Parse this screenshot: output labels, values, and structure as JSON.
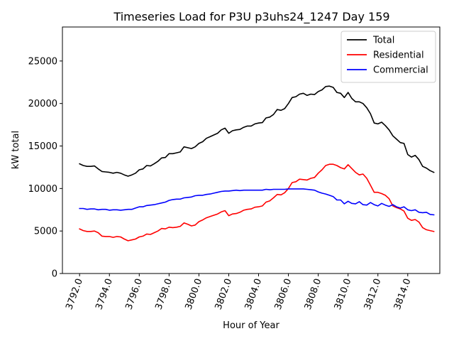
{
  "chart_data": {
    "type": "line",
    "title": "Timeseries Load for P3U p3uhs24_1247  Day 159",
    "xlabel": "Hour of Year",
    "ylabel": "kW total",
    "xlim": [
      3790.85,
      3816.15
    ],
    "ylim": [
      0,
      29000
    ],
    "x_ticks": [
      3792,
      3794,
      3796,
      3798,
      3800,
      3802,
      3804,
      3806,
      3808,
      3810,
      3812,
      3814
    ],
    "x_tick_labels": [
      "3792.0",
      "3794.0",
      "3796.0",
      "3798.0",
      "3800.0",
      "3802.0",
      "3804.0",
      "3806.0",
      "3808.0",
      "3810.0",
      "3812.0",
      "3814.0"
    ],
    "y_ticks": [
      0,
      5000,
      10000,
      15000,
      20000,
      25000
    ],
    "y_tick_labels": [
      "0",
      "5000",
      "10000",
      "15000",
      "20000",
      "25000"
    ],
    "legend_position": "top-right",
    "x": [
      3792.0,
      3792.25,
      3792.5,
      3792.75,
      3793.0,
      3793.25,
      3793.5,
      3793.75,
      3794.0,
      3794.25,
      3794.5,
      3794.75,
      3795.0,
      3795.25,
      3795.5,
      3795.75,
      3796.0,
      3796.25,
      3796.5,
      3796.75,
      3797.0,
      3797.25,
      3797.5,
      3797.75,
      3798.0,
      3798.25,
      3798.5,
      3798.75,
      3799.0,
      3799.25,
      3799.5,
      3799.75,
      3800.0,
      3800.25,
      3800.5,
      3800.75,
      3801.0,
      3801.25,
      3801.5,
      3801.75,
      3802.0,
      3802.25,
      3802.5,
      3802.75,
      3803.0,
      3803.25,
      3803.5,
      3803.75,
      3804.0,
      3804.25,
      3804.5,
      3804.75,
      3805.0,
      3805.25,
      3805.5,
      3805.75,
      3806.0,
      3806.25,
      3806.5,
      3806.75,
      3807.0,
      3807.25,
      3807.5,
      3807.75,
      3808.0,
      3808.25,
      3808.5,
      3808.75,
      3809.0,
      3809.25,
      3809.5,
      3809.75,
      3810.0,
      3810.25,
      3810.5,
      3810.75,
      3811.0,
      3811.25,
      3811.5,
      3811.75,
      3812.0,
      3812.25,
      3812.5,
      3812.75,
      3813.0,
      3813.25,
      3813.5,
      3813.75,
      3814.0,
      3814.25,
      3814.5,
      3814.75,
      3815.0,
      3815.25,
      3815.5,
      3815.75
    ],
    "series": [
      {
        "name": "Total",
        "color": "#000000",
        "values": [
          12900,
          12700,
          12600,
          12600,
          12650,
          12300,
          12000,
          11950,
          11900,
          11800,
          11900,
          11800,
          11600,
          11450,
          11600,
          11800,
          12200,
          12300,
          12700,
          12650,
          12900,
          13200,
          13600,
          13650,
          14100,
          14100,
          14200,
          14300,
          14900,
          14800,
          14700,
          14900,
          15300,
          15500,
          15900,
          16100,
          16300,
          16500,
          16900,
          17100,
          16500,
          16800,
          16900,
          16950,
          17200,
          17350,
          17350,
          17600,
          17700,
          17750,
          18300,
          18400,
          18700,
          19300,
          19200,
          19400,
          20000,
          20700,
          20800,
          21100,
          21200,
          20950,
          21100,
          21050,
          21400,
          21600,
          22000,
          22050,
          21900,
          21300,
          21200,
          20700,
          21300,
          20600,
          20200,
          20200,
          20000,
          19500,
          18800,
          17700,
          17600,
          17800,
          17400,
          16900,
          16200,
          15800,
          15400,
          15300,
          14000,
          13700,
          13900,
          13400,
          12600,
          12400,
          12100,
          11900
        ]
      },
      {
        "name": "Residential",
        "color": "#ff0000",
        "values": [
          5250,
          5050,
          4950,
          4950,
          5000,
          4800,
          4400,
          4350,
          4350,
          4250,
          4350,
          4300,
          4050,
          3850,
          3950,
          4050,
          4300,
          4400,
          4650,
          4600,
          4800,
          5000,
          5300,
          5250,
          5450,
          5400,
          5450,
          5550,
          5950,
          5800,
          5600,
          5700,
          6100,
          6300,
          6550,
          6700,
          6850,
          7000,
          7250,
          7400,
          6800,
          7000,
          7050,
          7200,
          7450,
          7550,
          7600,
          7800,
          7850,
          7950,
          8400,
          8550,
          8900,
          9300,
          9250,
          9500,
          10000,
          10700,
          10800,
          11100,
          11050,
          11000,
          11200,
          11300,
          11800,
          12200,
          12700,
          12850,
          12850,
          12700,
          12450,
          12300,
          12800,
          12350,
          11900,
          11600,
          11700,
          11200,
          10400,
          9550,
          9550,
          9400,
          9200,
          8800,
          7950,
          7750,
          7600,
          7350,
          6500,
          6250,
          6350,
          6050,
          5400,
          5150,
          5050,
          4950
        ]
      },
      {
        "name": "Commercial",
        "color": "#0000ff",
        "values": [
          7650,
          7650,
          7550,
          7600,
          7600,
          7500,
          7550,
          7550,
          7450,
          7500,
          7500,
          7450,
          7500,
          7550,
          7550,
          7700,
          7850,
          7850,
          8000,
          8050,
          8100,
          8200,
          8300,
          8400,
          8600,
          8700,
          8750,
          8750,
          8900,
          8950,
          9000,
          9150,
          9200,
          9200,
          9300,
          9350,
          9450,
          9550,
          9650,
          9700,
          9700,
          9750,
          9800,
          9750,
          9800,
          9800,
          9800,
          9800,
          9800,
          9800,
          9900,
          9850,
          9900,
          9900,
          9900,
          9900,
          9950,
          9950,
          9950,
          9950,
          9950,
          9900,
          9850,
          9800,
          9600,
          9450,
          9350,
          9200,
          9050,
          8650,
          8650,
          8200,
          8500,
          8250,
          8200,
          8450,
          8100,
          8050,
          8350,
          8100,
          7950,
          8250,
          8050,
          7900,
          8100,
          7850,
          7700,
          7850,
          7500,
          7400,
          7500,
          7200,
          7150,
          7200,
          6950,
          6900
        ]
      }
    ]
  }
}
